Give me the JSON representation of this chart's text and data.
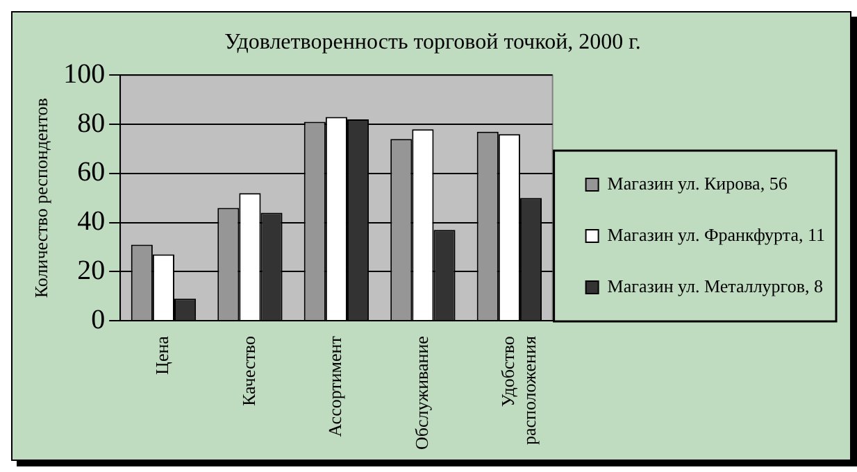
{
  "chart_data": {
    "type": "bar",
    "title": "Удовлетворенность торговой точкой, 2000 г.",
    "ylabel": "Количество респондентов",
    "categories": [
      "Цена",
      "Качество",
      "Ассортимент",
      "Обслуживание",
      "Удобство расположения"
    ],
    "series": [
      {
        "name": "Магазин ул. Кирова, 56",
        "color": "#969696",
        "values": [
          31,
          46,
          81,
          74,
          77
        ]
      },
      {
        "name": "Магазин ул. Франкфурта, 11",
        "color": "#ffffff",
        "values": [
          27,
          52,
          83,
          78,
          76
        ]
      },
      {
        "name": "Магазин ул. Металлургов, 8",
        "color": "#333333",
        "values": [
          9,
          44,
          82,
          37,
          50
        ]
      }
    ],
    "ylim": [
      0,
      100
    ],
    "yticks": [
      0,
      20,
      40,
      60,
      80,
      100
    ],
    "grid": "y",
    "legend": "right"
  }
}
